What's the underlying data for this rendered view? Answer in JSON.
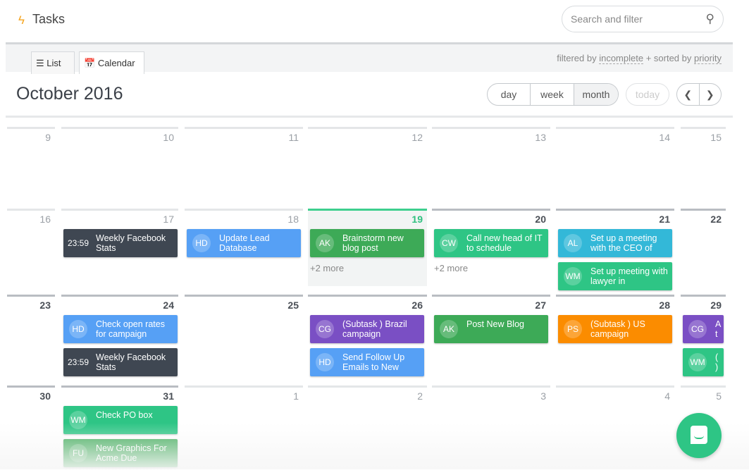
{
  "app": {
    "title": "Tasks",
    "logo_icon": "lightning-bolt-icon"
  },
  "search": {
    "placeholder": "Search and filter",
    "value": ""
  },
  "tabs": [
    {
      "label": "List",
      "icon": "list-icon"
    },
    {
      "label": "Calendar",
      "icon": "calendar-icon",
      "active": true
    }
  ],
  "filter": {
    "prefix": "filtered by ",
    "filter": "incomplete",
    "middle": " + sorted by ",
    "sort": "priority"
  },
  "calendar": {
    "title": "October 2016",
    "views": [
      {
        "label": "day"
      },
      {
        "label": "week"
      },
      {
        "label": "month",
        "active": true
      }
    ],
    "today_label": "today",
    "prev_icon": "chevron-left-icon",
    "next_icon": "chevron-right-icon",
    "weeks": [
      [
        {
          "n": "9"
        },
        {
          "n": "10"
        },
        {
          "n": "11"
        },
        {
          "n": "12"
        },
        {
          "n": "13"
        },
        {
          "n": "14"
        },
        {
          "n": "15"
        }
      ],
      [
        {
          "n": "16"
        },
        {
          "n": "17",
          "events": [
            {
              "time": "23:59",
              "title": "Weekly Facebook Stats",
              "color": "#3f4752"
            }
          ]
        },
        {
          "n": "18",
          "events": [
            {
              "av": "HD",
              "title": "Update Lead Database",
              "color": "#56a0f5"
            }
          ]
        },
        {
          "n": "19",
          "state": "today",
          "events": [
            {
              "av": "AK",
              "title": "Brainstorm new blog post",
              "color": "#3daa57"
            }
          ],
          "more": "+2 more"
        },
        {
          "n": "20",
          "state": "cur",
          "events": [
            {
              "av": "CW",
              "title": "Call new head of IT to schedule",
              "color": "#2ec585"
            }
          ],
          "more": "+2 more"
        },
        {
          "n": "21",
          "state": "cur",
          "events": [
            {
              "av": "AL",
              "title": "Set up a meeting with the CEO of",
              "color": "#33b8d8"
            },
            {
              "av": "WM",
              "title": "Set up meeting with lawyer in",
              "color": "#2ec585"
            }
          ]
        },
        {
          "n": "22",
          "state": "cur"
        }
      ],
      [
        {
          "n": "23",
          "state": "cur"
        },
        {
          "n": "24",
          "state": "cur",
          "events": [
            {
              "av": "HD",
              "title": "Check open rates for campaign",
              "color": "#56a0f5"
            },
            {
              "time": "23:59",
              "title": "Weekly Facebook Stats",
              "color": "#3f4752"
            }
          ]
        },
        {
          "n": "25",
          "state": "cur"
        },
        {
          "n": "26",
          "state": "cur",
          "events": [
            {
              "av": "CG",
              "title": "(Subtask ) Brazil campaign",
              "color": "#7a4fc4"
            },
            {
              "av": "HD",
              "title": "Send Follow Up Emails to New",
              "color": "#56a0f5"
            }
          ]
        },
        {
          "n": "27",
          "state": "cur",
          "events": [
            {
              "av": "AK",
              "title": "Post New Blog",
              "color": "#3daa57"
            }
          ]
        },
        {
          "n": "28",
          "state": "cur",
          "events": [
            {
              "av": "PS",
              "title": "(Subtask ) US campaign",
              "color": "#fb8c00"
            }
          ]
        },
        {
          "n": "29",
          "state": "cur",
          "events": [
            {
              "av": "CG",
              "title": "A t",
              "color": "#7a4fc4"
            },
            {
              "av": "WM",
              "title": "( )",
              "color": "#2ec585"
            }
          ]
        }
      ],
      [
        {
          "n": "30",
          "state": "cur"
        },
        {
          "n": "31",
          "state": "cur",
          "events": [
            {
              "av": "WM",
              "title": "Check PO box",
              "color": "#2ec585"
            },
            {
              "av": "FU",
              "title": "New Graphics For Acme Due",
              "color": "#3daa57"
            }
          ]
        },
        {
          "n": "1"
        },
        {
          "n": "2"
        },
        {
          "n": "3"
        },
        {
          "n": "4"
        },
        {
          "n": "5"
        }
      ]
    ]
  },
  "chat": {
    "icon": "chat-bubble-icon",
    "color": "#2ec585"
  }
}
